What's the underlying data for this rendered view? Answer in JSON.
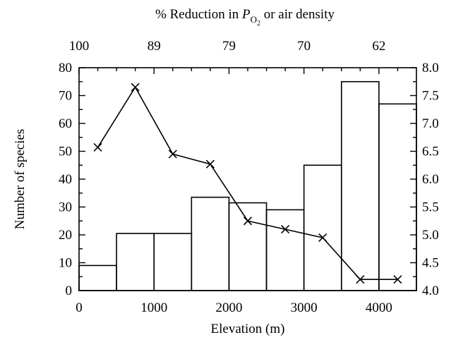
{
  "chart_data": {
    "type": "bar+line",
    "top_title": {
      "before": "% Reduction in ",
      "symbol": "P",
      "subscript": "O",
      "subsub": "2",
      "after": " or air density"
    },
    "xlabel": "Elevation (m)",
    "ylabel": "Number of species",
    "xlim": [
      0,
      4500
    ],
    "ylim_left": [
      0,
      80
    ],
    "ylim_right": [
      4.0,
      8.0
    ],
    "x_ticks": [
      {
        "value": 0,
        "label": "0"
      },
      {
        "value": 1000,
        "label": "1000"
      },
      {
        "value": 2000,
        "label": "2000"
      },
      {
        "value": 3000,
        "label": "3000"
      },
      {
        "value": 4000,
        "label": "4000"
      }
    ],
    "x_minor_ticks": [
      500,
      1500,
      2500,
      3500
    ],
    "y_left_ticks": [
      0,
      10,
      20,
      30,
      40,
      50,
      60,
      70,
      80
    ],
    "y_right_ticks": [
      "4.0",
      "4.5",
      "5.0",
      "5.5",
      "6.0",
      "6.5",
      "7.0",
      "7.5",
      "8.0"
    ],
    "top_ticks": [
      {
        "x": 0,
        "label": "100"
      },
      {
        "x": 1000,
        "label": "89"
      },
      {
        "x": 2000,
        "label": "79"
      },
      {
        "x": 3000,
        "label": "70"
      },
      {
        "x": 4000,
        "label": "62"
      }
    ],
    "top_minor_ticks": [
      250,
      500,
      750,
      1250,
      1500,
      1750,
      2250,
      2500,
      2750,
      3250,
      3500,
      3750,
      4250
    ],
    "bars": [
      {
        "x0": 0,
        "x1": 500,
        "value": 9
      },
      {
        "x0": 500,
        "x1": 1000,
        "value": 20.5
      },
      {
        "x0": 1000,
        "x1": 1500,
        "value": 20.5
      },
      {
        "x0": 1500,
        "x1": 2000,
        "value": 33.5
      },
      {
        "x0": 2000,
        "x1": 2500,
        "value": 31.5
      },
      {
        "x0": 2500,
        "x1": 3000,
        "value": 29
      },
      {
        "x0": 3000,
        "x1": 3500,
        "value": 45
      },
      {
        "x0": 3500,
        "x1": 4000,
        "value": 75
      },
      {
        "x0": 4000,
        "x1": 4500,
        "value": 67
      }
    ],
    "line": {
      "axis": "right",
      "marker": "x",
      "x": [
        250,
        750,
        1250,
        1750,
        2250,
        2750,
        3250,
        3750,
        4250
      ],
      "y": [
        6.57,
        7.65,
        6.45,
        6.27,
        5.25,
        5.1,
        4.95,
        4.2,
        4.2
      ]
    }
  }
}
